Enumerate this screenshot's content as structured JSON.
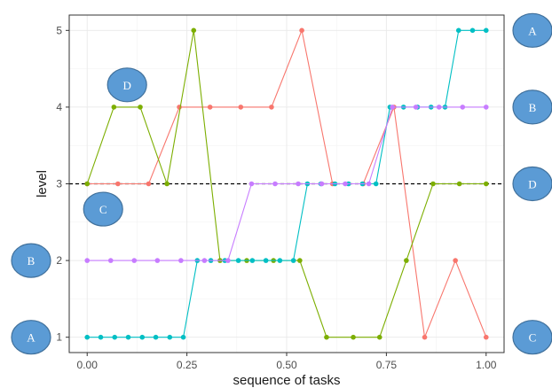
{
  "chart_data": {
    "type": "line",
    "title": "",
    "xlabel": "sequence of tasks",
    "ylabel": "level",
    "xlim": [
      -0.045,
      1.045
    ],
    "ylim": [
      0.8,
      5.2
    ],
    "x_ticks": [
      0,
      0.25,
      0.5,
      0.75,
      1
    ],
    "x_tick_labels": [
      "0.00",
      "0.25",
      "0.50",
      "0.75",
      "1.00"
    ],
    "y_ticks": [
      1,
      2,
      3,
      4,
      5
    ],
    "y_tick_labels": [
      "1",
      "2",
      "3",
      "4",
      "5"
    ],
    "grid": true,
    "legend": "none",
    "reference_line": {
      "y": 3,
      "style": "dashed",
      "color": "#000000"
    },
    "series": [
      {
        "color": "#F8766D",
        "points": [
          [
            0,
            3
          ],
          [
            0.077,
            3
          ],
          [
            0.154,
            3
          ],
          [
            0.231,
            4
          ],
          [
            0.308,
            4
          ],
          [
            0.385,
            4
          ],
          [
            0.462,
            4
          ],
          [
            0.538,
            5
          ],
          [
            0.615,
            3
          ],
          [
            0.692,
            3
          ],
          [
            0.769,
            4
          ],
          [
            0.846,
            1
          ],
          [
            0.923,
            2
          ],
          [
            1.0,
            1
          ]
        ]
      },
      {
        "color": "#7CAE00",
        "points": [
          [
            0,
            3
          ],
          [
            0.067,
            4
          ],
          [
            0.133,
            4
          ],
          [
            0.2,
            3
          ],
          [
            0.267,
            5
          ],
          [
            0.333,
            2
          ],
          [
            0.4,
            2
          ],
          [
            0.467,
            2
          ],
          [
            0.533,
            2
          ],
          [
            0.6,
            1
          ],
          [
            0.667,
            1
          ],
          [
            0.733,
            1
          ],
          [
            0.8,
            2
          ],
          [
            0.867,
            3
          ],
          [
            0.933,
            3
          ],
          [
            1.0,
            3
          ]
        ]
      },
      {
        "color": "#00BFC4",
        "points": [
          [
            0,
            1
          ],
          [
            0.034,
            1
          ],
          [
            0.069,
            1
          ],
          [
            0.103,
            1
          ],
          [
            0.138,
            1
          ],
          [
            0.172,
            1
          ],
          [
            0.207,
            1
          ],
          [
            0.241,
            1
          ],
          [
            0.276,
            2
          ],
          [
            0.31,
            2
          ],
          [
            0.345,
            2
          ],
          [
            0.379,
            2
          ],
          [
            0.414,
            2
          ],
          [
            0.448,
            2
          ],
          [
            0.483,
            2
          ],
          [
            0.517,
            2
          ],
          [
            0.552,
            3
          ],
          [
            0.586,
            3
          ],
          [
            0.621,
            3
          ],
          [
            0.655,
            3
          ],
          [
            0.69,
            3
          ],
          [
            0.724,
            3
          ],
          [
            0.759,
            4
          ],
          [
            0.793,
            4
          ],
          [
            0.828,
            4
          ],
          [
            0.862,
            4
          ],
          [
            0.897,
            4
          ],
          [
            0.931,
            5
          ],
          [
            0.966,
            5
          ],
          [
            1.0,
            5
          ]
        ]
      },
      {
        "color": "#C77CFF",
        "points": [
          [
            0,
            2
          ],
          [
            0.059,
            2
          ],
          [
            0.118,
            2
          ],
          [
            0.176,
            2
          ],
          [
            0.235,
            2
          ],
          [
            0.294,
            2
          ],
          [
            0.353,
            2
          ],
          [
            0.412,
            3
          ],
          [
            0.471,
            3
          ],
          [
            0.529,
            3
          ],
          [
            0.588,
            3
          ],
          [
            0.647,
            3
          ],
          [
            0.706,
            3
          ],
          [
            0.765,
            4
          ],
          [
            0.824,
            4
          ],
          [
            0.882,
            4
          ],
          [
            0.941,
            4
          ],
          [
            1.0,
            4
          ]
        ]
      }
    ],
    "annotations": [
      {
        "text": "A",
        "position": "right",
        "level": 5,
        "color": "#5B9BD5"
      },
      {
        "text": "B",
        "position": "right",
        "level": 4,
        "color": "#5B9BD5"
      },
      {
        "text": "D",
        "position": "right",
        "level": 3,
        "color": "#5B9BD5"
      },
      {
        "text": "C",
        "position": "right",
        "level": 1,
        "color": "#5B9BD5"
      },
      {
        "text": "B",
        "position": "left",
        "level": 2,
        "color": "#5B9BD5"
      },
      {
        "text": "A",
        "position": "left",
        "level": 1,
        "color": "#5B9BD5"
      },
      {
        "text": "D",
        "position": "inside",
        "x": 0.1,
        "level": 4.29,
        "color": "#5B9BD5"
      },
      {
        "text": "C",
        "position": "inside",
        "x": 0.04,
        "level": 2.67,
        "color": "#5B9BD5"
      }
    ]
  }
}
